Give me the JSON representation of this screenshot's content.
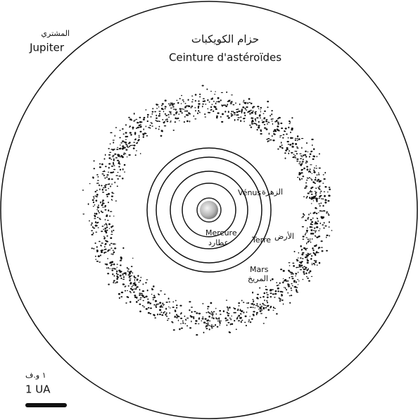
{
  "title_ar": "حزام الكويكبات",
  "title_fr": "Ceinture d'astéroïdes",
  "jupiter": {
    "ar": "المشتري",
    "fr": "Jupiter"
  },
  "planets": [
    {
      "fr": "Vénus",
      "ar": "الزهرة"
    },
    {
      "fr": "Mercure",
      "ar": "عطارد"
    },
    {
      "fr": "Terre",
      "ar": "الأرض"
    },
    {
      "fr": "Mars",
      "ar": "المريخ"
    }
  ],
  "scale": {
    "ar": "١ و.ف",
    "fr": "1 UA"
  }
}
